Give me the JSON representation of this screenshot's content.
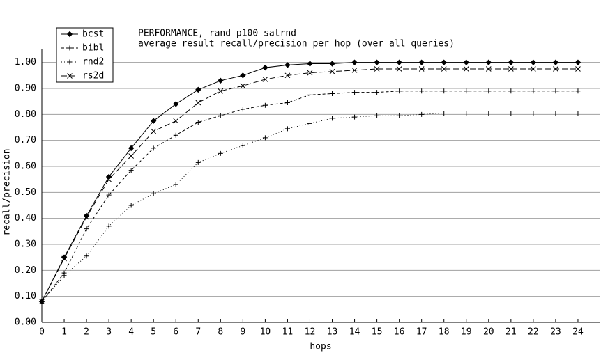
{
  "chart_data": {
    "type": "line",
    "title": "PERFORMANCE, rand_p100_satrnd",
    "subtitle": "average result recall/precision per hop (over all queries)",
    "x_label": "hops",
    "y_label": "recall/precision",
    "x": [
      0,
      1,
      2,
      3,
      4,
      5,
      6,
      7,
      8,
      9,
      10,
      11,
      12,
      13,
      14,
      15,
      16,
      17,
      18,
      19,
      20,
      21,
      22,
      23,
      24
    ],
    "series": [
      {
        "name": "bcst",
        "color": "#000000",
        "dash": "none",
        "marker": "diamond",
        "values": [
          0.08,
          0.25,
          0.41,
          0.56,
          0.67,
          0.775,
          0.84,
          0.895,
          0.93,
          0.95,
          0.98,
          0.99,
          0.995,
          0.995,
          1.0,
          1.0,
          1.0,
          1.0,
          1.0,
          1.0,
          1.0,
          1.0,
          1.0,
          1.0,
          1.0
        ]
      },
      {
        "name": "bibl",
        "color": "#000000",
        "dash": "4,3",
        "marker": "plus",
        "values": [
          0.08,
          0.19,
          0.36,
          0.49,
          0.585,
          0.67,
          0.72,
          0.77,
          0.795,
          0.82,
          0.835,
          0.845,
          0.875,
          0.88,
          0.885,
          0.885,
          0.89,
          0.89,
          0.89,
          0.89,
          0.89,
          0.89,
          0.89,
          0.89,
          0.89
        ]
      },
      {
        "name": "rnd2",
        "color": "#000000",
        "dash": "1,3",
        "marker": "plus",
        "values": [
          0.08,
          0.18,
          0.255,
          0.37,
          0.45,
          0.495,
          0.53,
          0.615,
          0.65,
          0.68,
          0.71,
          0.745,
          0.765,
          0.785,
          0.79,
          0.795,
          0.795,
          0.8,
          0.805,
          0.805,
          0.805,
          0.805,
          0.805,
          0.805,
          0.805
        ]
      },
      {
        "name": "rs2d",
        "color": "#000000",
        "dash": "8,4",
        "marker": "cross",
        "values": [
          0.08,
          0.245,
          0.405,
          0.55,
          0.64,
          0.735,
          0.775,
          0.845,
          0.89,
          0.91,
          0.935,
          0.95,
          0.96,
          0.965,
          0.97,
          0.975,
          0.975,
          0.975,
          0.975,
          0.975,
          0.975,
          0.975,
          0.975,
          0.975,
          0.975
        ]
      }
    ],
    "xlim": [
      0,
      25
    ],
    "ylim": [
      0,
      1.05
    ],
    "xticks": [
      0,
      1,
      2,
      3,
      4,
      5,
      6,
      7,
      8,
      9,
      10,
      11,
      12,
      13,
      14,
      15,
      16,
      17,
      18,
      19,
      20,
      21,
      22,
      23,
      24
    ],
    "yticks": [
      {
        "value": 0,
        "label": "0.00"
      },
      {
        "value": 0.1,
        "label": "0.10"
      },
      {
        "value": 0.2,
        "label": "0.20"
      },
      {
        "value": 0.3,
        "label": "0.30"
      },
      {
        "value": 0.4,
        "label": "0.40"
      },
      {
        "value": 0.5,
        "label": "0.50"
      },
      {
        "value": 0.6,
        "label": "0.60"
      },
      {
        "value": 0.7,
        "label": "0.70"
      },
      {
        "value": 0.8,
        "label": "0.80"
      },
      {
        "value": 0.9,
        "label": "0.90"
      },
      {
        "value": 1.0,
        "label": "1.00"
      }
    ],
    "grid": true,
    "grid_color": "#a0a0a0",
    "legend": "top-left"
  }
}
